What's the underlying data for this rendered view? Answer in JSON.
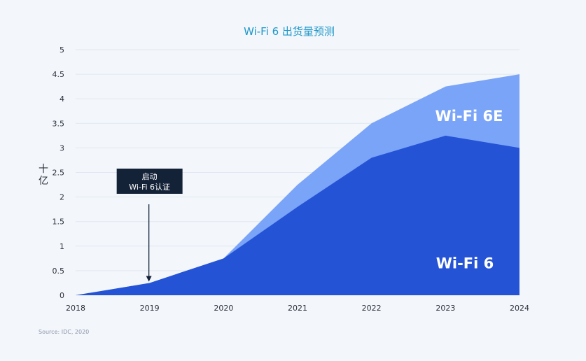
{
  "chart_data": {
    "type": "area",
    "title": "Wi-Fi 6 出货量预测",
    "ylabel": "十亿",
    "x": [
      "2018",
      "2019",
      "2020",
      "2021",
      "2022",
      "2023",
      "2024"
    ],
    "ylim": [
      0,
      5
    ],
    "yticks": [
      "0",
      "0.5",
      "1",
      "1.5",
      "2",
      "2.5",
      "3",
      "3.5",
      "4",
      "4.5",
      "5"
    ],
    "stacked": true,
    "grid": true,
    "series": [
      {
        "name": "Wi-Fi 6",
        "values": [
          0,
          0.25,
          0.75,
          1.8,
          2.8,
          3.25,
          3.0
        ],
        "color": "#2453d6"
      },
      {
        "name": "Wi-Fi 6E",
        "values": [
          0,
          0,
          0,
          0.45,
          0.7,
          1.0,
          1.5
        ],
        "color": "#7aa4f7"
      }
    ],
    "annotation": {
      "line1": "启动",
      "line2": "Wi-Fi 6认证",
      "x": "2019"
    },
    "source": "Source: IDC, 2020"
  }
}
